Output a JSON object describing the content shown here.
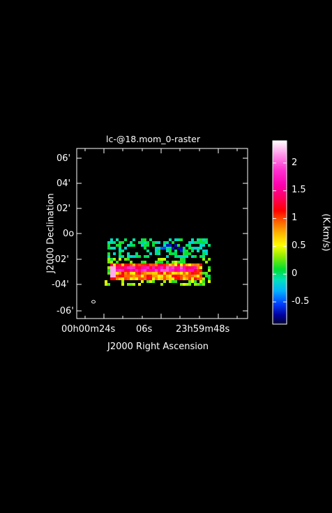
{
  "chart_data": {
    "type": "heatmap",
    "title": "lc-@18.mom_0-raster",
    "xlabel": "J2000 Right Ascension",
    "ylabel": "J2000 Declination",
    "x_tick_labels": [
      "00h00m24s",
      "06s",
      "23h59m48s"
    ],
    "y_tick_labels": [
      "06'",
      "04'",
      "02'",
      "0o",
      "-02'",
      "-04'",
      "-06'"
    ],
    "colorbar": {
      "label": "(K.km/s)",
      "min": -0.9,
      "max": 2.4,
      "ticks": [
        "2",
        "1.5",
        "1",
        "0.5",
        "0",
        "-0.5"
      ],
      "tick_values": [
        2,
        1.5,
        1,
        0.5,
        0,
        -0.5
      ]
    },
    "grid": false,
    "beam": "ellipse at lower-left",
    "colors": {
      "background": "#000000",
      "axes": "#ffffff"
    }
  }
}
